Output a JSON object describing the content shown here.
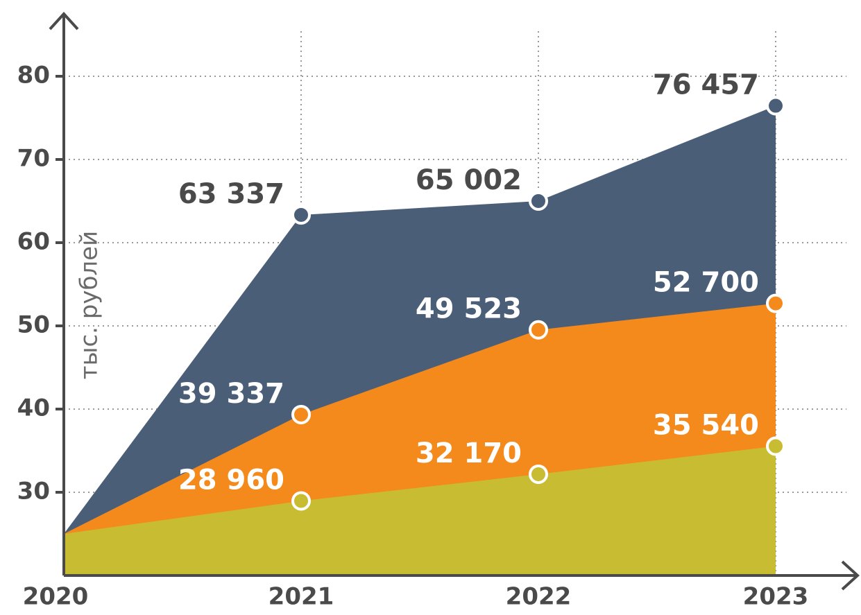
{
  "chart_data": {
    "type": "area",
    "y_label": "тыс. рублей",
    "categories": [
      "2020",
      "2021",
      "2022",
      "2023"
    ],
    "series": [
      {
        "color": "#4a5e78",
        "label_color": "#4a4a4a",
        "values": [
          25,
          63.337,
          65.002,
          76.457
        ],
        "value_labels": [
          null,
          "63 337",
          "65 002",
          "76 457"
        ]
      },
      {
        "color": "#f48a1c",
        "label_color": "#ffffff",
        "values": [
          25,
          39.337,
          49.523,
          52.7
        ],
        "value_labels": [
          null,
          "39 337",
          "49 523",
          "52 700"
        ]
      },
      {
        "color": "#c8bc33",
        "label_color": "#ffffff",
        "values": [
          25,
          28.96,
          32.17,
          35.54
        ],
        "value_labels": [
          null,
          "28 960",
          "32 170",
          "35 540"
        ]
      }
    ],
    "ylim": [
      20,
      87.5
    ],
    "yticks": [
      30,
      40,
      50,
      60,
      70,
      80
    ],
    "grid": true
  }
}
